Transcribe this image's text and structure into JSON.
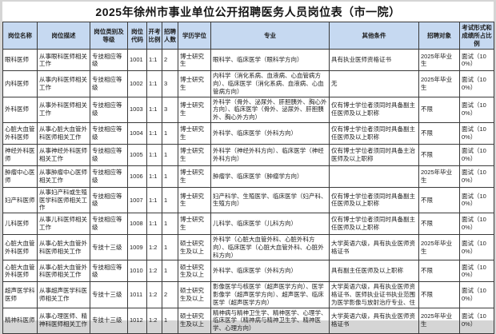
{
  "title": "2025年徐州市事业单位公开招聘医务人员岗位表（市一院）",
  "colors": {
    "header_bg": "#c6d9f1",
    "border": "#3a3a3a",
    "page_bg": "#d5d5d5",
    "text": "#1c1c1c"
  },
  "table": {
    "headers": [
      "岗位名称",
      "岗位描述",
      "岗位类别及等级",
      "岗位代码",
      "开考比例",
      "招聘人数",
      "学历学位",
      "专业",
      "其他条件",
      "招聘对象",
      "考试形式和成绩所占比例"
    ],
    "rows": [
      [
        "眼科医师",
        "从事眼科医师相关工作",
        "专技相应等级",
        "1001",
        "1:1",
        "2",
        "博士研究生",
        "眼科学、临床医学（眼科学方向）",
        "具有执业医师资格证书",
        "2025年毕业生",
        "面试（100%）"
      ],
      [
        "内科医师",
        "从事内科医师相关工作",
        "专技相应等级",
        "1002",
        "1:1",
        "3",
        "博士研究生",
        "内科学（消化系病、血液病、心血管病方向）、临床医学（消化系病、血液病、心血管病方向）",
        "无",
        "2025年毕业生",
        "面试（100%）"
      ],
      [
        "外科医师",
        "从事外科医师相关工作",
        "专技相应等级",
        "1003",
        "1:1",
        "3",
        "博士研究生",
        "外科学（骨外、泌尿外、肝胆胰外、胸心外方向）、临床医学（骨外、泌尿外、肝胆胰外、胸心外方向）",
        "仅有博士学位者须同时具备副主任医师及以上职称",
        "不限",
        "面试（100%）"
      ],
      [
        "心脏大血管外科医师",
        "从事心脏大血管外科医师相关工作",
        "专技相应等级",
        "1004",
        "1:1",
        "1",
        "博士研究生",
        "外科学、临床医学（外科方向）",
        "仅有博士学位者须同时具备副主任医师及以上职称",
        "不限",
        "面试（100%）"
      ],
      [
        "神经外科医师",
        "从事神经外科医师相关工作",
        "专技相应等级",
        "1005",
        "1:1",
        "1",
        "博士研究生",
        "外科学（神经外科方向）、临床医学（神经外科方向）",
        "仅有博士学位者须同时具备主治医师及以上职称",
        "不限",
        "面试（100%）"
      ],
      [
        "肿瘤中心医师",
        "从事肿瘤中心医师相关工作",
        "专技相应等级",
        "1006",
        "1:1",
        "1",
        "博士研究生",
        "肿瘤学、临床医学（肿瘤学方向）",
        "",
        "2025年毕业生",
        "面试（100%）"
      ],
      [
        "妇产科医师",
        "从事妇产科或生殖医学科医师相关工作",
        "专技相应等级",
        "1007",
        "1:1",
        "1",
        "博士研究生",
        "妇产科学、生殖医学、临床医学（妇产科、生殖方向）",
        "仅有博士学位者须同时具备副主任医师及以上职称",
        "不限",
        "面试（100%）"
      ],
      [
        "儿科医师",
        "从事儿科医师相关工作",
        "专技相应等级",
        "1008",
        "1:1",
        "1",
        "博士研究生",
        "儿科学、临床医学（儿科方向）",
        "仅有博士学位者须同时具备副主任医师及以上职称",
        "不限",
        "面试（100%）"
      ],
      [
        "心脏大血管外科医师",
        "从事心脏大血管外科医师相关工作",
        "专技十三级",
        "1009",
        "1:2",
        "1",
        "硕士研究生及以上",
        "外科学（心脏大血管外科、心脏外科方向）、临床医学（心脏大血管外科、心脏外科方向）",
        "大学英语六级，具有执业医师资格证书",
        "2025年毕业生",
        "面试（100%）"
      ],
      [
        "心脏大血管外科医师",
        "从事心脏大血管外科医师相关工作",
        "专技相应等级",
        "1010",
        "1:2",
        "1",
        "硕士研究生及以上",
        "外科学、临床医学（外科方向）",
        "具有副主任医师及以上职称",
        "不限",
        "面试（100%）"
      ],
      [
        "超声医学科医师",
        "从事超声医学科医师相关工作",
        "专技十三级",
        "1011",
        "1:2",
        "2",
        "硕士研究生及以上",
        "影像医学与核医学（超声医学方向）、医学影像学（超声医学方向）、超声医学、临床医学（超声医学方向）",
        "大学英语六级，具有执业医师资格证书、医师执业证书执业范围为医学影像与放射治疗专业、住",
        "不限",
        "面试（100%）"
      ],
      [
        "精神科医师",
        "从事心理医师、精神科医师相关工作",
        "专技十三级",
        "1012",
        "1:2",
        "1",
        "硕士研究生及以上",
        "精神病与精神卫生学、精神医学、心理学、临床医学（精神病与精神卫生学、精神医学、心理方向）",
        "大学英语六级，具有执业医师资格证书",
        "2025年毕业生",
        "面试（100%）"
      ]
    ]
  }
}
